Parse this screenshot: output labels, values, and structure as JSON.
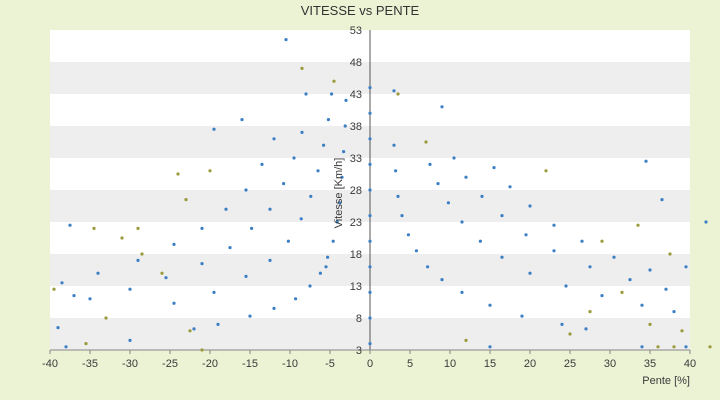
{
  "chart_data": {
    "type": "scatter",
    "title": "VITESSE vs PENTE",
    "xlabel": "Pente [%]",
    "ylabel": "Vitesse [Km/h]",
    "xlim": [
      -40,
      40
    ],
    "ylim": [
      3,
      53
    ],
    "xticks": [
      "-40",
      "-35",
      "-30",
      "-25",
      "-20",
      "-15",
      "-10",
      "-5",
      "0",
      "5",
      "10",
      "15",
      "20",
      "25",
      "30",
      "35",
      "40"
    ],
    "yticks": [
      "3",
      "8",
      "13",
      "18",
      "23",
      "28",
      "33",
      "38",
      "43",
      "48",
      "53"
    ],
    "grid": "horizontal bands",
    "legend": "none",
    "colors": {
      "primary": "#3d7fc4",
      "secondary": "#9a9a3a",
      "band": "#eeeeee",
      "page": "#ecf2d4"
    },
    "series": [
      {
        "color": "#3d7fc4",
        "points": [
          [
            -3.0,
            42.0
          ],
          [
            -3.1,
            38.0
          ],
          [
            -3.3,
            34.0
          ],
          [
            -3.5,
            30.0
          ],
          [
            -3.8,
            26.0
          ],
          [
            -4.1,
            23.0
          ],
          [
            -4.6,
            20.0
          ],
          [
            -5.3,
            17.5
          ],
          [
            -6.2,
            15.0
          ],
          [
            -7.5,
            13.0
          ],
          [
            -9.3,
            11.0
          ],
          [
            -12.0,
            9.5
          ],
          [
            -15.0,
            8.3
          ],
          [
            -19.0,
            7.0
          ],
          [
            -22.0,
            6.3
          ],
          [
            -4.8,
            43.0
          ],
          [
            -5.2,
            39.0
          ],
          [
            -5.8,
            35.0
          ],
          [
            -6.5,
            31.0
          ],
          [
            -7.4,
            27.0
          ],
          [
            -8.6,
            23.5
          ],
          [
            -10.2,
            20.0
          ],
          [
            -12.5,
            17.0
          ],
          [
            -15.5,
            14.5
          ],
          [
            -19.5,
            12.0
          ],
          [
            -24.5,
            10.3
          ],
          [
            -8.5,
            37.0
          ],
          [
            -9.5,
            33.0
          ],
          [
            -10.8,
            29.0
          ],
          [
            -12.5,
            25.0
          ],
          [
            -14.8,
            22.0
          ],
          [
            -17.5,
            19.0
          ],
          [
            -21.0,
            16.5
          ],
          [
            -25.5,
            14.3
          ],
          [
            -30.0,
            12.5
          ],
          [
            -35.0,
            11.0
          ],
          [
            -12.0,
            36.0
          ],
          [
            -13.5,
            32.0
          ],
          [
            -15.5,
            28.0
          ],
          [
            -18.0,
            25.0
          ],
          [
            -21.0,
            22.0
          ],
          [
            -24.5,
            19.5
          ],
          [
            -29.0,
            17.0
          ],
          [
            -34.0,
            15.0
          ],
          [
            -38.5,
            13.5
          ],
          [
            3.0,
            35.0
          ],
          [
            3.2,
            31.0
          ],
          [
            3.5,
            27.0
          ],
          [
            4.0,
            24.0
          ],
          [
            4.8,
            21.0
          ],
          [
            5.8,
            18.5
          ],
          [
            7.2,
            16.0
          ],
          [
            9.0,
            14.0
          ],
          [
            11.5,
            12.0
          ],
          [
            15.0,
            10.0
          ],
          [
            19.0,
            8.3
          ],
          [
            24.0,
            7.0
          ],
          [
            27.0,
            6.3
          ],
          [
            7.5,
            32.0
          ],
          [
            8.5,
            29.0
          ],
          [
            9.8,
            26.0
          ],
          [
            11.5,
            23.0
          ],
          [
            13.8,
            20.0
          ],
          [
            16.5,
            17.5
          ],
          [
            20.0,
            15.0
          ],
          [
            24.5,
            13.0
          ],
          [
            29.0,
            11.5
          ],
          [
            34.0,
            10.0
          ],
          [
            38.0,
            9.0
          ],
          [
            10.5,
            33.0
          ],
          [
            12.0,
            30.0
          ],
          [
            14.0,
            27.0
          ],
          [
            16.5,
            24.0
          ],
          [
            19.5,
            21.0
          ],
          [
            23.0,
            18.5
          ],
          [
            27.5,
            16.0
          ],
          [
            32.5,
            14.0
          ],
          [
            37.0,
            12.5
          ],
          [
            15.5,
            31.5
          ],
          [
            17.5,
            28.5
          ],
          [
            20.0,
            25.5
          ],
          [
            23.0,
            22.5
          ],
          [
            26.5,
            20.0
          ],
          [
            30.5,
            17.5
          ],
          [
            35.0,
            15.5
          ],
          [
            0.0,
            4.0
          ],
          [
            0.0,
            8.0
          ],
          [
            0.0,
            12.0
          ],
          [
            0.0,
            16.0
          ],
          [
            0.0,
            20.0
          ],
          [
            0.0,
            24.0
          ],
          [
            0.0,
            28.0
          ],
          [
            0.0,
            32.0
          ],
          [
            0.0,
            36.0
          ],
          [
            0.0,
            40.0
          ],
          [
            0.0,
            44.0
          ],
          [
            -10.5,
            51.5
          ],
          [
            -8.0,
            43.0
          ],
          [
            -19.5,
            37.5
          ],
          [
            -16.0,
            39.0
          ],
          [
            -37.5,
            22.5
          ],
          [
            -37.0,
            11.5
          ],
          [
            -39.0,
            6.5
          ],
          [
            -30.0,
            4.5
          ],
          [
            -38.0,
            3.5
          ],
          [
            -5.5,
            16.0
          ],
          [
            3.0,
            43.5
          ],
          [
            9.0,
            41.0
          ],
          [
            34.5,
            32.5
          ],
          [
            36.5,
            26.5
          ],
          [
            39.5,
            16.0
          ],
          [
            42.0,
            23.0
          ],
          [
            34.0,
            3.5
          ],
          [
            15.0,
            3.5
          ],
          [
            39.5,
            3.5
          ]
        ]
      },
      {
        "color": "#9a9a3a",
        "points": [
          [
            -4.5,
            45.0
          ],
          [
            -8.5,
            47.0
          ],
          [
            -24.0,
            30.5
          ],
          [
            -23.0,
            26.5
          ],
          [
            -20.0,
            31.0
          ],
          [
            -29.0,
            22.0
          ],
          [
            -34.5,
            22.0
          ],
          [
            -39.5,
            12.5
          ],
          [
            -35.5,
            4.0
          ],
          [
            -33.0,
            8.0
          ],
          [
            -26.0,
            15.0
          ],
          [
            -21.0,
            3.0
          ],
          [
            -22.5,
            6.0
          ],
          [
            -31.0,
            20.5
          ],
          [
            -28.5,
            18.0
          ],
          [
            3.5,
            43.0
          ],
          [
            7.0,
            35.5
          ],
          [
            12.0,
            4.5
          ],
          [
            22.0,
            31.0
          ],
          [
            29.0,
            20.0
          ],
          [
            33.5,
            22.5
          ],
          [
            35.0,
            7.0
          ],
          [
            38.0,
            3.5
          ],
          [
            36.0,
            3.5
          ],
          [
            31.5,
            12.0
          ],
          [
            37.5,
            18.0
          ],
          [
            39.0,
            6.0
          ],
          [
            42.5,
            3.5
          ],
          [
            25.0,
            5.5
          ],
          [
            27.5,
            9.0
          ]
        ]
      }
    ]
  }
}
